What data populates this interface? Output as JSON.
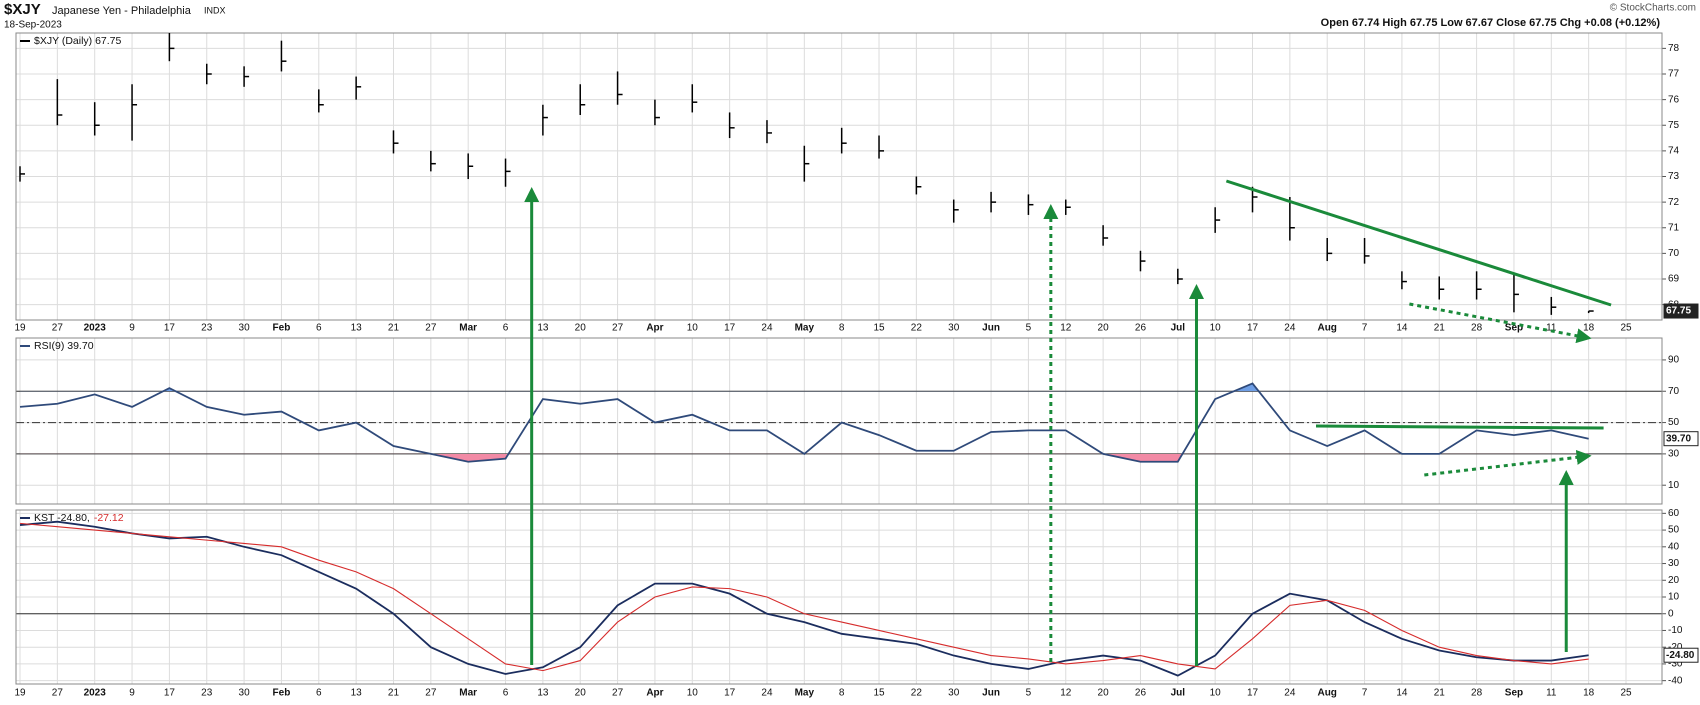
{
  "chart_data": [
    {
      "type": "ohlc",
      "title": "$XJY",
      "subtitle": "Japanese Yen - Philadelphia",
      "exchange": "INDX",
      "date": "18-Sep-2023",
      "quote": "Open 67.74 High 67.75 Low 67.67 Close 67.75 Chg +0.08 (+0.12%)",
      "credit": "© StockCharts.com",
      "last_label": "67.75",
      "categories": [
        "19",
        "27",
        "2023",
        "9",
        "17",
        "23",
        "30",
        "Feb",
        "6",
        "13",
        "21",
        "27",
        "Mar",
        "6",
        "13",
        "20",
        "27",
        "Apr",
        "10",
        "17",
        "24",
        "May",
        "8",
        "15",
        "22",
        "30",
        "Jun",
        "5",
        "12",
        "20",
        "26",
        "Jul",
        "10",
        "17",
        "24",
        "Aug",
        "7",
        "14",
        "21",
        "28",
        "Sep",
        "11",
        "18",
        "25"
      ],
      "series": [
        {
          "name": "$XJY (Daily) 67.75",
          "color": "#000000",
          "values": [
            73.1,
            75.4,
            75.0,
            75.8,
            78.0,
            77.0,
            76.9,
            77.5,
            75.8,
            76.5,
            74.3,
            73.5,
            73.4,
            73.2,
            75.3,
            75.8,
            76.2,
            75.3,
            75.9,
            74.9,
            74.7,
            73.5,
            74.3,
            74.0,
            72.6,
            71.7,
            72.0,
            71.9,
            71.8,
            70.6,
            69.7,
            69.0,
            71.3,
            72.2,
            71.0,
            70.0,
            69.9,
            68.9,
            68.6,
            68.6,
            68.4,
            67.9,
            67.75,
            null
          ],
          "highs": [
            73.4,
            76.8,
            75.9,
            76.6,
            78.6,
            77.4,
            77.3,
            78.3,
            76.4,
            76.9,
            74.8,
            74.0,
            73.9,
            73.7,
            75.8,
            76.6,
            77.1,
            76.0,
            76.6,
            75.5,
            75.2,
            74.2,
            74.9,
            74.6,
            73.0,
            72.1,
            72.4,
            72.3,
            72.1,
            71.1,
            70.1,
            69.4,
            71.8,
            72.6,
            72.2,
            70.6,
            70.6,
            69.3,
            69.1,
            69.3,
            69.2,
            68.3,
            67.75,
            null
          ],
          "lows": [
            72.8,
            75.0,
            74.6,
            74.4,
            77.5,
            76.6,
            76.5,
            77.1,
            75.5,
            76.0,
            73.9,
            73.2,
            72.9,
            72.6,
            74.6,
            75.4,
            75.8,
            75.0,
            75.5,
            74.5,
            74.3,
            72.8,
            73.9,
            73.7,
            72.3,
            71.2,
            71.6,
            71.5,
            71.5,
            70.3,
            69.3,
            68.8,
            70.8,
            71.6,
            70.5,
            69.7,
            69.6,
            68.6,
            68.2,
            68.2,
            67.7,
            67.6,
            67.67,
            null
          ]
        }
      ],
      "ylim": [
        67.4,
        78.6
      ],
      "yticks": [
        68,
        69,
        70,
        71,
        72,
        73,
        74,
        75,
        76,
        77,
        78
      ],
      "grid": true
    },
    {
      "type": "line",
      "last_label": "39.70",
      "series": [
        {
          "name": "RSI(9) 39.70",
          "color": "#2f4a7a",
          "values": [
            60,
            62,
            68,
            60,
            72,
            60,
            55,
            57,
            45,
            50,
            35,
            30,
            25,
            27,
            65,
            62,
            65,
            50,
            55,
            45,
            45,
            30,
            50,
            42,
            32,
            32,
            44,
            45,
            45,
            30,
            25,
            25,
            65,
            75,
            45,
            35,
            45,
            30,
            30,
            45,
            42,
            45,
            39.7,
            null
          ]
        }
      ],
      "levels": [
        70,
        50,
        30
      ],
      "overbought_color": "#6f9fe6",
      "oversold_color": "#f28aa5",
      "ylim": [
        -2,
        104
      ],
      "yticks": [
        10,
        30,
        50,
        70,
        90
      ],
      "grid": true
    },
    {
      "type": "line",
      "last_label": "-24.80",
      "series": [
        {
          "name": "KST -24.80,",
          "color": "#1b2d5e",
          "values": [
            53,
            55,
            52,
            48,
            45,
            46,
            40,
            35,
            25,
            15,
            0,
            -20,
            -30,
            -36,
            -32,
            -20,
            5,
            18,
            18,
            12,
            0,
            -5,
            -12,
            -15,
            -18,
            -25,
            -30,
            -33,
            -28,
            -25,
            -28,
            -37,
            -25,
            0,
            12,
            8,
            -5,
            -15,
            -22,
            -26,
            -28,
            -28,
            -24.8,
            null
          ]
        },
        {
          "name": "-27.12",
          "color": "#d62c2c",
          "values": [
            54,
            52,
            50,
            48,
            46,
            44,
            42,
            40,
            32,
            25,
            15,
            0,
            -15,
            -30,
            -34,
            -28,
            -5,
            10,
            16,
            15,
            10,
            0,
            -5,
            -10,
            -15,
            -20,
            -25,
            -27,
            -30,
            -28,
            -25,
            -30,
            -33,
            -15,
            5,
            8,
            2,
            -10,
            -20,
            -25,
            -28,
            -30,
            -27.12,
            null
          ]
        }
      ],
      "levels": [
        0
      ],
      "ylim": [
        -42,
        62
      ],
      "yticks": [
        -40,
        -30,
        -20,
        -10,
        0,
        10,
        20,
        30,
        40,
        50,
        60
      ],
      "grid": true
    }
  ]
}
